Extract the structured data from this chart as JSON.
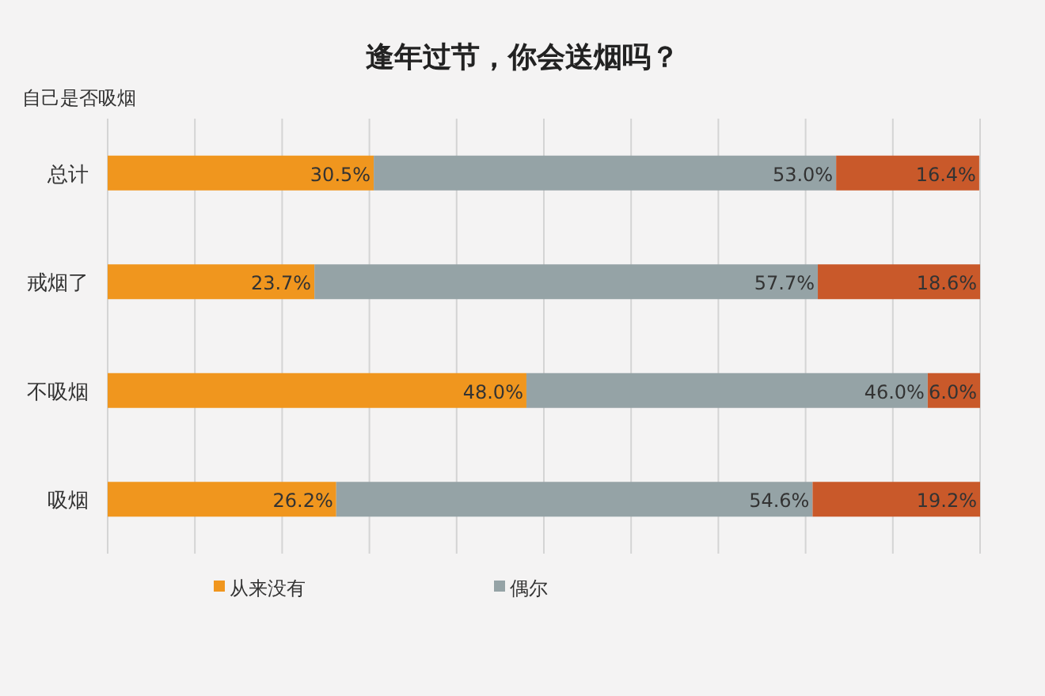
{
  "chart_data": {
    "type": "bar",
    "orientation": "horizontal",
    "stacked": true,
    "title": "逢年过节，你会送烟吗？",
    "ylabel": "自己是否吸烟",
    "categories": [
      "总计",
      "戒烟了",
      "不吸烟",
      "吸烟"
    ],
    "series": [
      {
        "name": "从来没有",
        "color": "#f0961e",
        "values": [
          30.5,
          23.7,
          48.0,
          26.2
        ],
        "value_labels": [
          "30.5%",
          "23.7%",
          "48.0%",
          "26.2%"
        ]
      },
      {
        "name": "偶尔",
        "color": "#95a3a6",
        "values": [
          53.0,
          57.7,
          46.0,
          54.6
        ],
        "value_labels": [
          "53.0%",
          "57.7%",
          "46.0%",
          "54.6%"
        ]
      },
      {
        "color": "#c9592a",
        "values": [
          16.4,
          18.6,
          6.0,
          19.2
        ],
        "value_labels": [
          "16.4%",
          "18.6%",
          "6.0%",
          "19.2%"
        ]
      }
    ],
    "grid": "x",
    "legend": "bottom",
    "tick_labels": "y"
  }
}
